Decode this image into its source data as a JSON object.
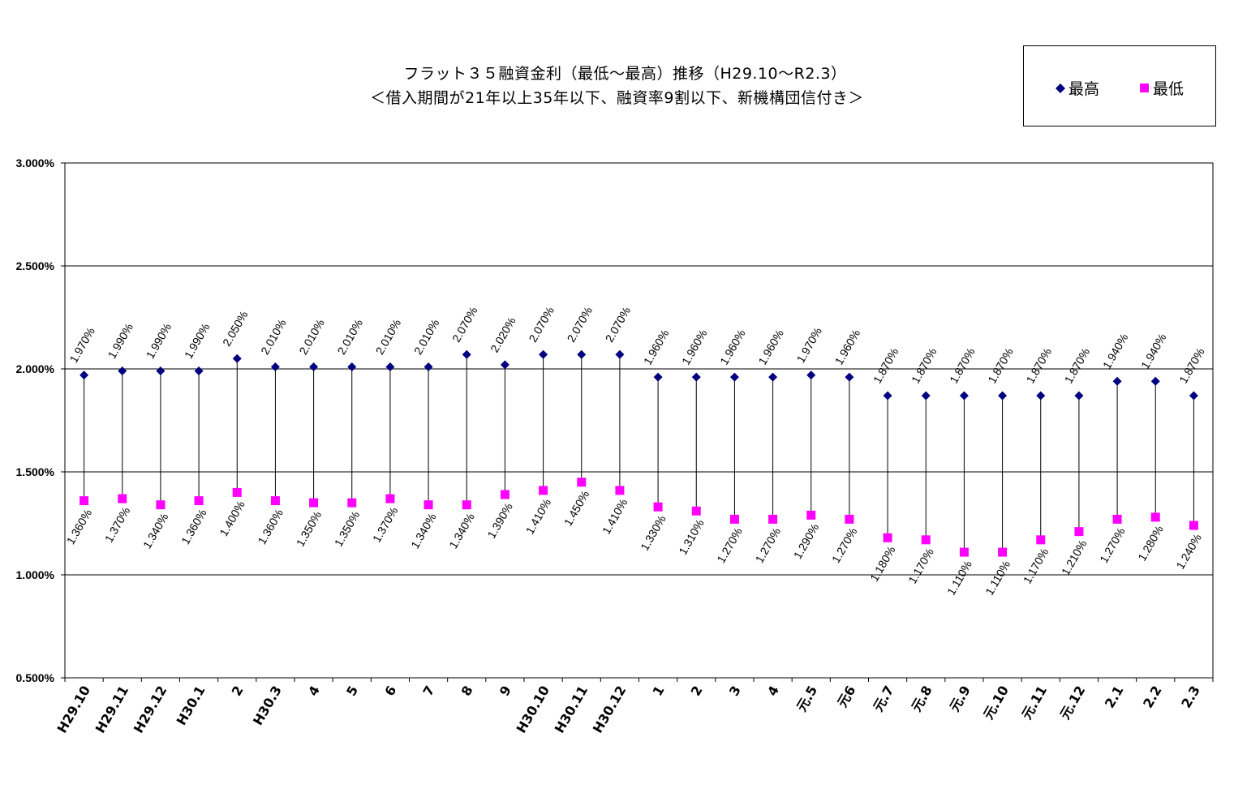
{
  "chart_data": {
    "type": "scatter",
    "title": "フラット３５融資金利（最低～最高）推移（H29.10～R2.3）",
    "subtitle": "＜借入期間が21年以上35年以下、融資率9割以下、新機構団信付き＞",
    "ylim": [
      0.5,
      3.0
    ],
    "yticks": [
      "0.500%",
      "1.000%",
      "1.500%",
      "2.000%",
      "2.500%",
      "3.000%"
    ],
    "ytick_values": [
      0.5,
      1.0,
      1.5,
      2.0,
      2.5,
      3.0
    ],
    "grid": true,
    "legend_position": "top-right",
    "categories": [
      "H29.10",
      "H29.11",
      "H29.12",
      "H30.1",
      "2",
      "H30.3",
      "4",
      "5",
      "6",
      "7",
      "8",
      "9",
      "H30.10",
      "H30.11",
      "H30.12",
      "1",
      "2",
      "3",
      "4",
      "元.5",
      "元6",
      "元.7",
      "元.8",
      "元.9",
      "元.10",
      "元.11",
      "元.12",
      "2.1",
      "2.2",
      "2.3"
    ],
    "series": [
      {
        "name": "最高",
        "color": "#000080",
        "marker": "diamond",
        "values": [
          1.97,
          1.99,
          1.99,
          1.99,
          2.05,
          2.01,
          2.01,
          2.01,
          2.01,
          2.01,
          2.07,
          2.02,
          2.07,
          2.07,
          2.07,
          1.96,
          1.96,
          1.96,
          1.96,
          1.97,
          1.96,
          1.87,
          1.87,
          1.87,
          1.87,
          1.87,
          1.87,
          1.94,
          1.94,
          1.87
        ],
        "labels": [
          "1.970%",
          "1.990%",
          "1.990%",
          "1.990%",
          "2.050%",
          "2.010%",
          "2.010%",
          "2.010%",
          "2.010%",
          "2.010%",
          "2.070%",
          "2.020%",
          "2.070%",
          "2.070%",
          "2.070%",
          "1.960%",
          "1.960%",
          "1.960%",
          "1.960%",
          "1.970%",
          "1.960%",
          "1.870%",
          "1.870%",
          "1.870%",
          "1.870%",
          "1.870%",
          "1.870%",
          "1.940%",
          "1.940%",
          "1.870%"
        ]
      },
      {
        "name": "最低",
        "color": "#FF00FF",
        "marker": "square",
        "values": [
          1.36,
          1.37,
          1.34,
          1.36,
          1.4,
          1.36,
          1.35,
          1.35,
          1.37,
          1.34,
          1.34,
          1.39,
          1.41,
          1.45,
          1.41,
          1.33,
          1.31,
          1.27,
          1.27,
          1.29,
          1.27,
          1.18,
          1.17,
          1.11,
          1.11,
          1.17,
          1.21,
          1.27,
          1.28,
          1.24
        ],
        "labels": [
          "1.360%",
          "1.370%",
          "1.340%",
          "1.360%",
          "1.400%",
          "1.360%",
          "1.350%",
          "1.350%",
          "1.370%",
          "1.340%",
          "1.340%",
          "1.390%",
          "1.410%",
          "1.450%",
          "1.410%",
          "1.330%",
          "1.310%",
          "1.270%",
          "1.270%",
          "1.290%",
          "1.270%",
          "1.180%",
          "1.170%",
          "1.110%",
          "1.110%",
          "1.170%",
          "1.210%",
          "1.270%",
          "1.280%",
          "1.240%"
        ]
      }
    ]
  },
  "legend": {
    "high_label": "最高",
    "low_label": "最低",
    "high_color": "#000080",
    "low_color": "#FF00FF"
  }
}
